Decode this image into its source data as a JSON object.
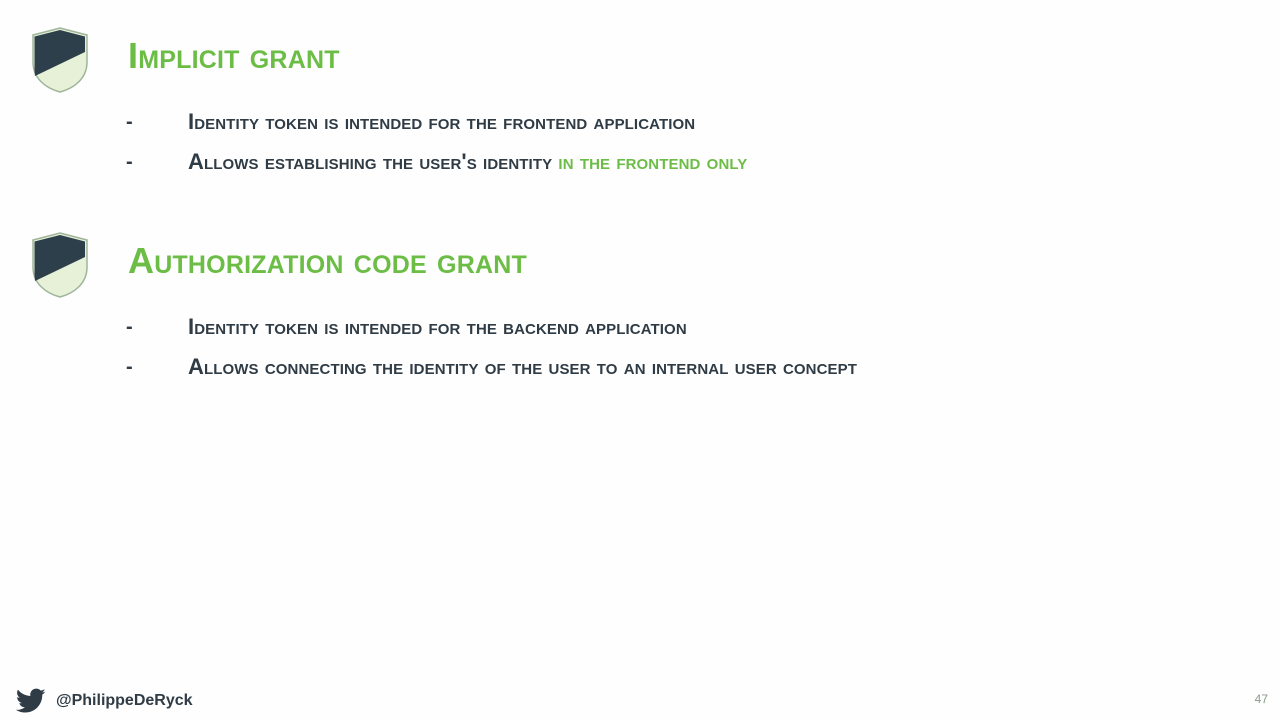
{
  "sections": [
    {
      "heading": "Implicit grant",
      "bullets": [
        {
          "text": "Identity token is intended for the frontend application",
          "accent": ""
        },
        {
          "text": "Allows establishing the user's identity ",
          "accent": "in the frontend only"
        }
      ]
    },
    {
      "heading": "Authorization code grant",
      "bullets": [
        {
          "text": "Identity token is intended for the backend application",
          "accent": ""
        },
        {
          "text": "Allows connecting the identity of the user to an internal user concept",
          "accent": ""
        }
      ]
    }
  ],
  "bullet_marker": "-",
  "footer": {
    "icon": "twitter-icon",
    "handle": "@PhilippeDeRyck",
    "page_number": "47"
  },
  "colors": {
    "accent_green": "#6cbd45",
    "text_dark": "#2f3b45",
    "shield_dark": "#2e3f4c",
    "shield_light": "#e6f1d8"
  }
}
